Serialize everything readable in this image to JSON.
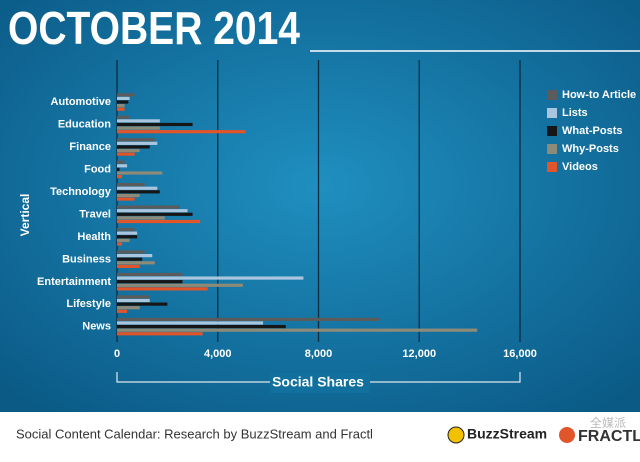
{
  "chart_data": {
    "type": "bar",
    "orientation": "horizontal",
    "title": "OCTOBER 2014",
    "y_label": "Vertical",
    "x_label": "Social Shares",
    "footer": "Social Content Calendar: Research by BuzzStream and Fractl",
    "logos": [
      "BuzzStream",
      "FRACTL"
    ],
    "watermark": "全媒派",
    "categories": [
      "Automotive",
      "Education",
      "Finance",
      "Food",
      "Technology",
      "Travel",
      "Health",
      "Business",
      "Entertainment",
      "Lifestyle",
      "News"
    ],
    "series": [
      {
        "name": "How-to Article",
        "color": "#5b5b5b",
        "values": [
          700,
          500,
          1500,
          300,
          1100,
          2500,
          700,
          1100,
          2600,
          1300,
          10400
        ]
      },
      {
        "name": "Lists",
        "color": "#aac6df",
        "values": [
          500,
          1700,
          1600,
          400,
          1600,
          2800,
          800,
          1400,
          7400,
          1300,
          5800
        ]
      },
      {
        "name": "What-Posts",
        "color": "#161616",
        "values": [
          450,
          3000,
          1300,
          100,
          1700,
          3000,
          800,
          1000,
          2600,
          2000,
          6700
        ]
      },
      {
        "name": "Why-Posts",
        "color": "#8e8a78",
        "values": [
          300,
          1700,
          900,
          1800,
          900,
          1900,
          500,
          1500,
          5000,
          900,
          14300
        ]
      },
      {
        "name": "Videos",
        "color": "#e0552a",
        "values": [
          300,
          5100,
          700,
          200,
          700,
          3300,
          200,
          900,
          3600,
          400,
          3400
        ]
      }
    ],
    "xlim": [
      0,
      16000
    ],
    "xticks": [
      0,
      {
        "value": 4000,
        "label": "4,000"
      },
      {
        "value": 8000,
        "label": "8,000"
      },
      {
        "value": 12000,
        "label": "12,000"
      },
      {
        "value": 16000,
        "label": "16,000"
      }
    ],
    "grid": true
  }
}
